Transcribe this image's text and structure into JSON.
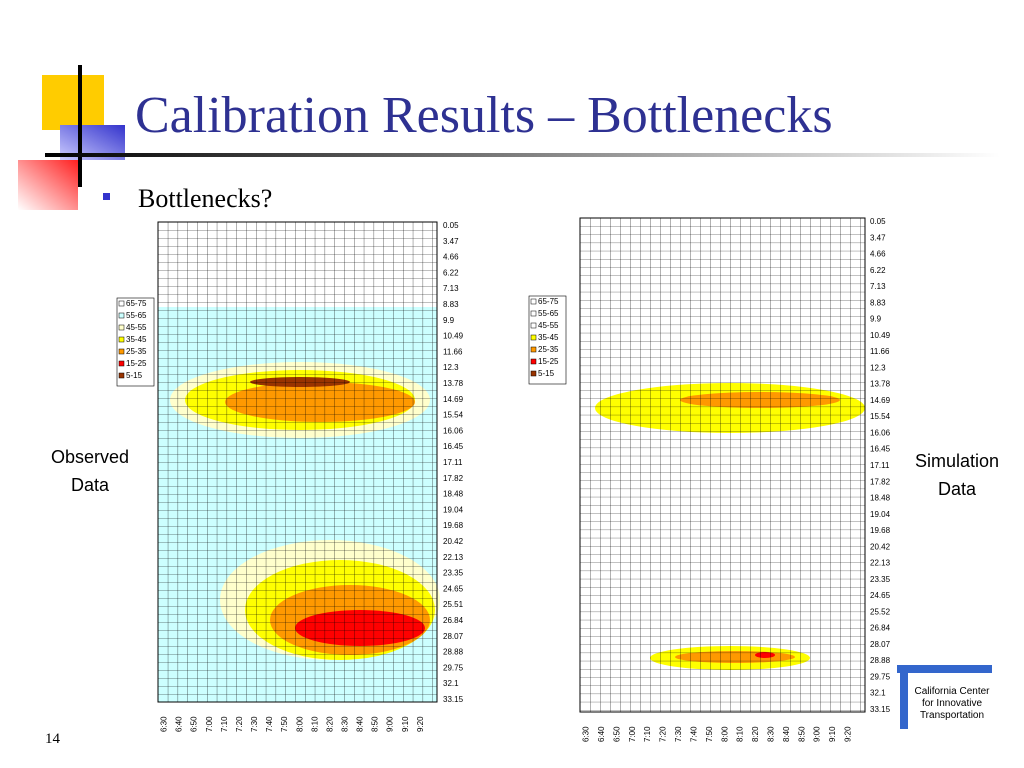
{
  "slide": {
    "title": "Calibration Results – Bottlenecks",
    "bullet": "Bottlenecks?",
    "page_number": "14"
  },
  "panels": [
    {
      "label": [
        "Observed",
        "Data"
      ],
      "y_labels": [
        "0.05",
        "3.47",
        "4.66",
        "6.22",
        "7.13",
        "8.83",
        "9.9",
        "10.49",
        "11.66",
        "12.3",
        "13.78",
        "14.69",
        "15.54",
        "16.06",
        "16.45",
        "17.11",
        "17.82",
        "18.48",
        "19.04",
        "19.68",
        "20.42",
        "22.13",
        "23.35",
        "24.65",
        "25.51",
        "26.84",
        "28.07",
        "28.88",
        "29.75",
        "32.1",
        "33.15"
      ],
      "x_labels": [
        "6:30",
        "6:40",
        "6:50",
        "7:00",
        "7:10",
        "7:20",
        "7:30",
        "7:40",
        "7:50",
        "8:00",
        "8:10",
        "8:20",
        "8:30",
        "8:40",
        "8:50",
        "9:00",
        "9:10",
        "9:20"
      ],
      "legend": [
        {
          "label": "65-75",
          "color": "#ffffff"
        },
        {
          "label": "55-65",
          "color": "#ccffff"
        },
        {
          "label": "45-55",
          "color": "#ffffcc"
        },
        {
          "label": "35-45",
          "color": "#ffff00"
        },
        {
          "label": "25-35",
          "color": "#ff9900"
        },
        {
          "label": "15-25",
          "color": "#ff0000"
        },
        {
          "label": "5-15",
          "color": "#993300"
        }
      ]
    },
    {
      "label": [
        "Simulation",
        "Data"
      ],
      "y_labels": [
        "0.05",
        "3.47",
        "4.66",
        "6.22",
        "7.13",
        "8.83",
        "9.9",
        "10.49",
        "11.66",
        "12.3",
        "13.78",
        "14.69",
        "15.54",
        "16.06",
        "16.45",
        "17.11",
        "17.82",
        "18.48",
        "19.04",
        "19.68",
        "20.42",
        "22.13",
        "23.35",
        "24.65",
        "25.52",
        "26.84",
        "28.07",
        "28.88",
        "29.75",
        "32.1",
        "33.15"
      ],
      "x_labels": [
        "6:30",
        "6:40",
        "6:50",
        "7:00",
        "7:10",
        "7:20",
        "7:30",
        "7:40",
        "7:50",
        "8:00",
        "8:10",
        "8:20",
        "8:30",
        "8:40",
        "8:50",
        "9:00",
        "9:10",
        "9:20"
      ],
      "legend": [
        {
          "label": "65-75",
          "color": "#ffffff"
        },
        {
          "label": "55-65",
          "color": "#ffffff"
        },
        {
          "label": "45-55",
          "color": "#ffffff"
        },
        {
          "label": "35-45",
          "color": "#ffff00"
        },
        {
          "label": "25-35",
          "color": "#ff9900"
        },
        {
          "label": "15-25",
          "color": "#ff0000"
        },
        {
          "label": "5-15",
          "color": "#993300"
        }
      ]
    }
  ],
  "logo": [
    "California Center",
    "for Innovative",
    "Transportation"
  ]
}
